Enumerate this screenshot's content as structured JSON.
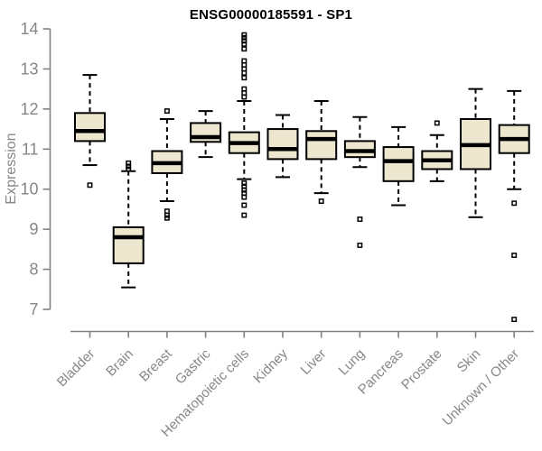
{
  "chart_data": {
    "type": "box",
    "title": "ENSG00000185591 - SP1",
    "ylabel": "Expression",
    "xlabel": "",
    "ylim": [
      7,
      14
    ],
    "yticks": [
      7,
      8,
      9,
      10,
      11,
      12,
      13,
      14
    ],
    "grid": false,
    "legend": "none",
    "colors": {
      "box_fill": "#ede7d0",
      "box_stroke": "#000000",
      "median": "#000000",
      "whisker": "#000000",
      "outlier": "#000000",
      "axis": "#828282",
      "tick_label": "#878787",
      "title": "#000000"
    },
    "categories": [
      "Bladder",
      "Brain",
      "Breast",
      "Gastric",
      "Hematopoietic cells",
      "Kidney",
      "Liver",
      "Lung",
      "Pancreas",
      "Prostate",
      "Skin",
      "Unknown / Other"
    ],
    "boxes": [
      {
        "name": "Bladder",
        "whisker_low": 10.6,
        "q1": 11.2,
        "median": 11.45,
        "q3": 11.9,
        "whisker_high": 12.85,
        "outliers": [
          10.1
        ]
      },
      {
        "name": "Brain",
        "whisker_low": 7.55,
        "q1": 8.15,
        "median": 8.8,
        "q3": 9.05,
        "whisker_high": 10.45,
        "outliers": [
          10.65,
          10.57,
          10.5
        ]
      },
      {
        "name": "Breast",
        "whisker_low": 9.7,
        "q1": 10.4,
        "median": 10.65,
        "q3": 10.95,
        "whisker_high": 11.75,
        "outliers": [
          11.95,
          9.45,
          9.35,
          9.28
        ]
      },
      {
        "name": "Gastric",
        "whisker_low": 10.8,
        "q1": 11.18,
        "median": 11.3,
        "q3": 11.65,
        "whisker_high": 11.95,
        "outliers": []
      },
      {
        "name": "Hematopoietic cells",
        "whisker_low": 10.25,
        "q1": 10.9,
        "median": 11.15,
        "q3": 11.42,
        "whisker_high": 12.2,
        "outliers": [
          13.85,
          13.78,
          13.7,
          13.62,
          13.5,
          13.2,
          13.1,
          13.0,
          12.9,
          12.78,
          12.5,
          12.4,
          12.3,
          10.15,
          10.07,
          9.98,
          9.9,
          9.8,
          9.6,
          9.35
        ]
      },
      {
        "name": "Kidney",
        "whisker_low": 10.3,
        "q1": 10.75,
        "median": 11.0,
        "q3": 11.5,
        "whisker_high": 11.85,
        "outliers": []
      },
      {
        "name": "Liver",
        "whisker_low": 9.9,
        "q1": 10.75,
        "median": 11.25,
        "q3": 11.45,
        "whisker_high": 12.2,
        "outliers": [
          9.7
        ]
      },
      {
        "name": "Lung",
        "whisker_low": 10.55,
        "q1": 10.8,
        "median": 10.95,
        "q3": 11.2,
        "whisker_high": 11.8,
        "outliers": [
          9.25,
          8.6
        ]
      },
      {
        "name": "Pancreas",
        "whisker_low": 9.6,
        "q1": 10.2,
        "median": 10.7,
        "q3": 11.05,
        "whisker_high": 11.55,
        "outliers": []
      },
      {
        "name": "Prostate",
        "whisker_low": 10.2,
        "q1": 10.5,
        "median": 10.72,
        "q3": 10.95,
        "whisker_high": 11.35,
        "outliers": [
          11.65
        ]
      },
      {
        "name": "Skin",
        "whisker_low": 9.3,
        "q1": 10.5,
        "median": 11.1,
        "q3": 11.75,
        "whisker_high": 12.5,
        "outliers": []
      },
      {
        "name": "Unknown / Other",
        "whisker_low": 10.0,
        "q1": 10.9,
        "median": 11.25,
        "q3": 11.6,
        "whisker_high": 12.45,
        "outliers": [
          9.65,
          8.35,
          6.75
        ]
      }
    ]
  }
}
